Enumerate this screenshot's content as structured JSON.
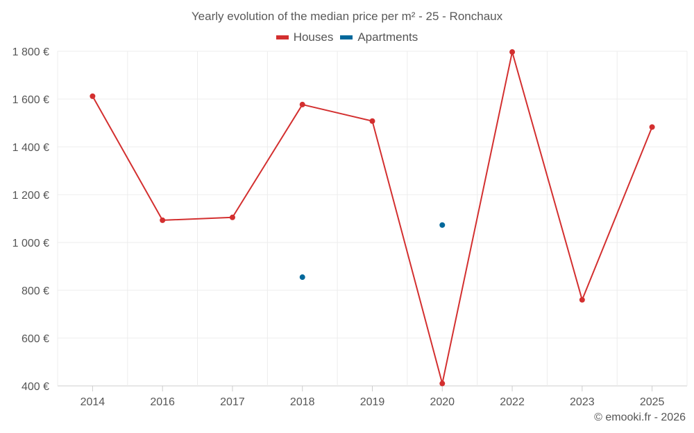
{
  "chart_data": {
    "type": "line",
    "title": "Yearly evolution of the median price per m² - 25 - Ronchaux",
    "categories": [
      "2014",
      "2016",
      "2017",
      "2018",
      "2019",
      "2020",
      "2022",
      "2023",
      "2025"
    ],
    "series": [
      {
        "name": "Houses",
        "color": "#d32f2f",
        "values": [
          1612,
          1093,
          1105,
          1577,
          1508,
          410,
          1797,
          760,
          1483
        ]
      },
      {
        "name": "Apartments",
        "color": "#01689b",
        "values": [
          null,
          null,
          null,
          855,
          null,
          1073,
          null,
          null,
          null
        ]
      }
    ],
    "yticks": [
      "400 €",
      "600 €",
      "800 €",
      "1 000 €",
      "1 200 €",
      "1 400 €",
      "1 600 €",
      "1 800 €"
    ],
    "ylim": [
      400,
      1800
    ],
    "xlabel": "",
    "ylabel": "",
    "grid": true,
    "legend_position": "top-center"
  },
  "credit": "© emooki.fr - 2026"
}
